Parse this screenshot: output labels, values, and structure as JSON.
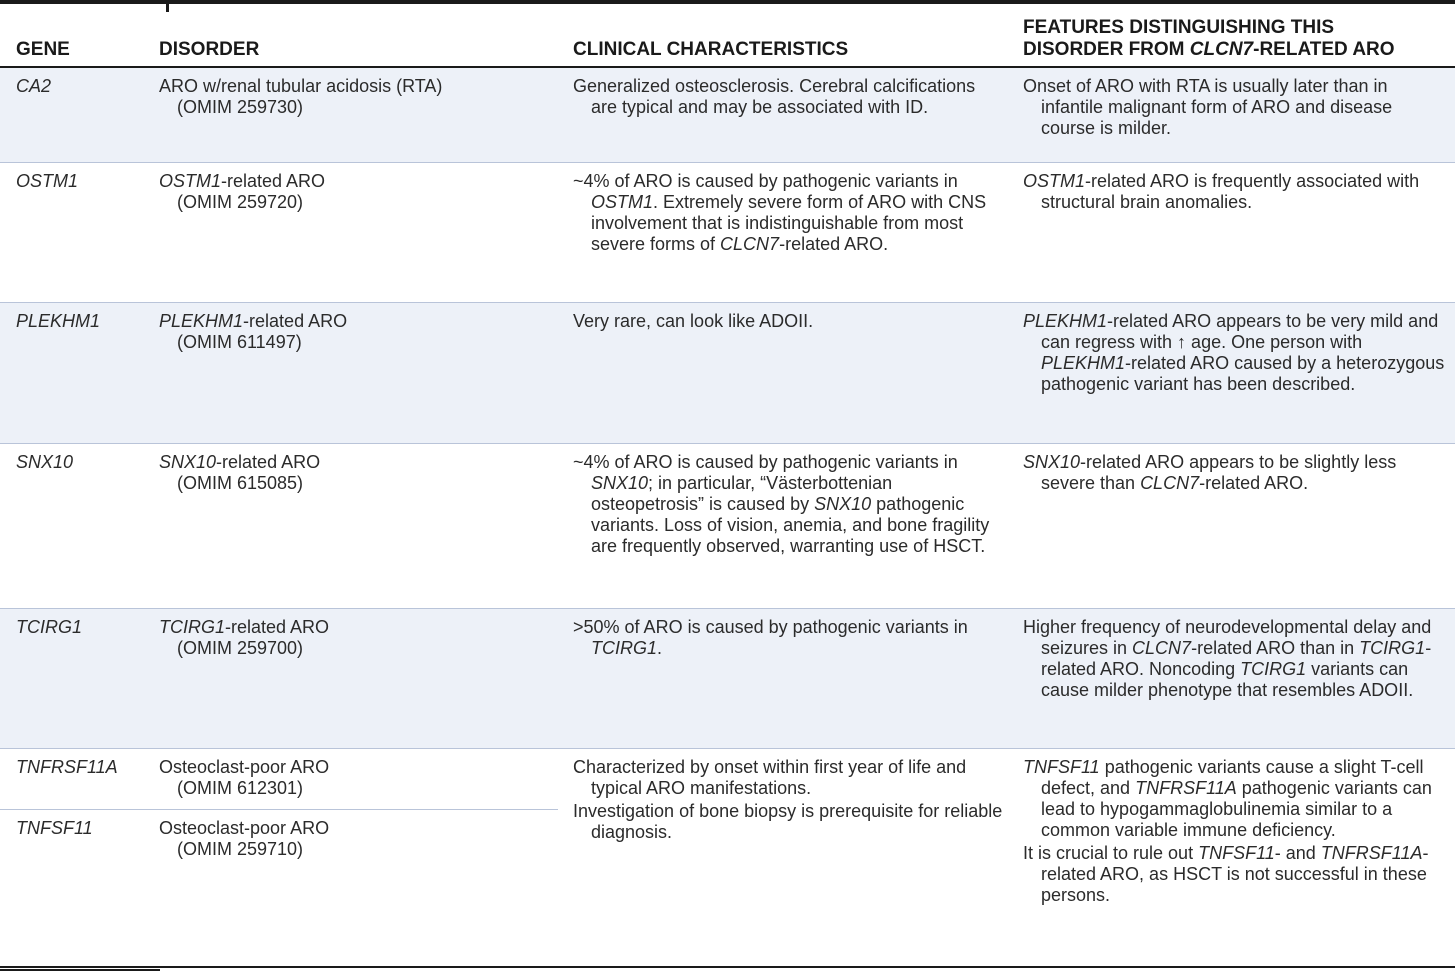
{
  "headers": {
    "gene": "GENE",
    "disorder": "DISORDER",
    "clinical": "CLINICAL CHARACTERISTICS",
    "features_line1": "FEATURES DISTINGUISHING THIS",
    "features_line2_pre": "DISORDER FROM ",
    "features_line2_gene": "CLCN7",
    "features_line2_post": "-RELATED ARO"
  },
  "rows": [
    {
      "gene": "CA2",
      "disorder_name_pre": "",
      "disorder_name_gene": "",
      "disorder_name_post": "ARO w/renal tubular acidosis (RTA)",
      "disorder_omim": "(OMIM 259730)",
      "clinical": "Generalized osteosclerosis. Cerebral calcifications are typical and may be associated with ID.",
      "features": "Onset of ARO with RTA is usually later than in infantile malignant form of ARO and disease course is milder."
    },
    {
      "gene": "OSTM1",
      "disorder_name_gene": "OSTM1",
      "disorder_name_post": "-related ARO",
      "disorder_omim": "(OMIM 259720)",
      "clinical_p1": "~4% of ARO is caused by pathogenic variants in ",
      "clinical_g1": "OSTM1",
      "clinical_p2": ". Extremely severe form of ARO with CNS involvement that is indistinguishable from most severe forms of ",
      "clinical_g2": "CLCN7",
      "clinical_p3": "-related ARO.",
      "features_g1": "OSTM1",
      "features_p1": "-related ARO is frequently associated with structural brain anomalies."
    },
    {
      "gene": "PLEKHM1",
      "disorder_name_gene": "PLEKHM1",
      "disorder_name_post": "-related ARO",
      "disorder_omim": "(OMIM 611497)",
      "clinical": "Very rare, can look like ADOII.",
      "features_g1": "PLEKHM1",
      "features_p1": "-related ARO appears to be very mild and can regress with ↑ age. One person with ",
      "features_g2": "PLEKHM1",
      "features_p2": "-related ARO caused by a heterozygous pathogenic variant has been described."
    },
    {
      "gene": "SNX10",
      "disorder_name_gene": "SNX10",
      "disorder_name_post": "-related ARO",
      "disorder_omim": "(OMIM 615085)",
      "clinical_p1": "~4% of ARO is caused by pathogenic variants in ",
      "clinical_g1": "SNX10",
      "clinical_p2": "; in particular, “Västerbottenian osteopetrosis” is caused by ",
      "clinical_g2": "SNX10",
      "clinical_p3": " pathogenic variants. Loss of vision, anemia, and bone fragility are frequently observed, warranting use of HSCT.",
      "features_g1": "SNX10",
      "features_p1": "-related ARO appears to be slightly less severe than ",
      "features_g2": "CLCN7",
      "features_p2": "-related ARO."
    },
    {
      "gene": "TCIRG1",
      "disorder_name_gene": "TCIRG1",
      "disorder_name_post": "-related ARO",
      "disorder_omim": "(OMIM 259700)",
      "clinical_p1": ">50% of ARO is caused by pathogenic variants in ",
      "clinical_g1": "TCIRG1",
      "clinical_p2": ".",
      "features_p1": "Higher frequency of neurodevelopmental delay and seizures in ",
      "features_g1": "CLCN7",
      "features_p2": "-related ARO than in ",
      "features_g2": "TCIRG1",
      "features_p3": "-related ARO. Noncoding ",
      "features_g3": "TCIRG1",
      "features_p4": " variants can cause milder phenotype that resembles ADOII."
    },
    {
      "gene_a": "TNFRSF11A",
      "disorder_a_name": "Osteoclast-poor ARO",
      "disorder_a_omim": "(OMIM 612301)",
      "gene_b": "TNFSF11",
      "disorder_b_name": "Osteoclast-poor ARO",
      "disorder_b_omim": "(OMIM 259710)",
      "clinical_para1": "Characterized by onset within first year of life and typical ARO manifestations.",
      "clinical_para2": "Investigation of bone biopsy is prerequisite for reliable diagnosis.",
      "features_g1": "TNFSF11",
      "features_p1": " pathogenic variants cause a slight T-cell defect, and ",
      "features_g2": "TNFRSF11A",
      "features_p2": " pathogenic variants can lead to hypogammaglobulinemia similar to a common variable immune deficiency.",
      "features_para2_p1": "It is crucial to rule out ",
      "features_para2_g1": "TNFSF11",
      "features_para2_p2": "- and ",
      "features_para2_g2": "TNFRSF11A",
      "features_para2_p3": "-related ARO, as HSCT is not successful in these persons."
    }
  ]
}
